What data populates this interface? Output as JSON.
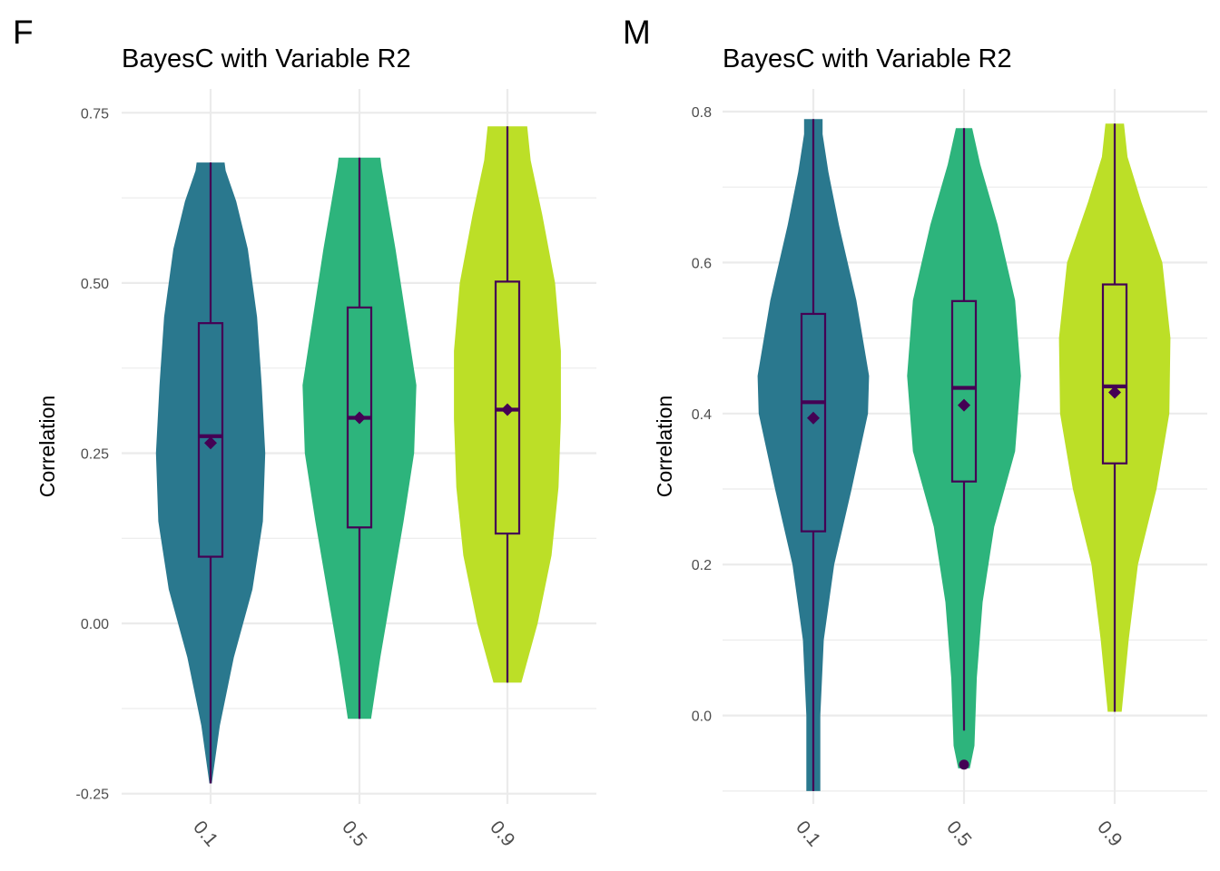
{
  "colors": {
    "violin_0.1": "#2a788e",
    "violin_0.5": "#2db47c",
    "violin_0.9": "#bcdf27",
    "box_stroke": "#440154",
    "mean_marker": "#440154",
    "grid": "#ebebeb",
    "tick_text": "#4d4d4d"
  },
  "chart_data": [
    {
      "panel_tag": "F",
      "type": "violin",
      "title": "BayesC with Variable R2",
      "xlabel": "",
      "ylabel": "Correlation",
      "categories": [
        "0.1",
        "0.5",
        "0.9"
      ],
      "y_ticks": [
        "0.75",
        "0.50",
        "0.25",
        "0.00",
        "-0.25"
      ],
      "ylim": [
        -0.265,
        0.785
      ],
      "grid": true,
      "legend": "none",
      "groups": [
        {
          "category": "0.1",
          "min": -0.235,
          "q1": 0.098,
          "median": 0.275,
          "q3": 0.441,
          "max": 0.677,
          "mean": 0.265,
          "outliers": [],
          "density": [
            [
              -0.235,
              0.01
            ],
            [
              -0.15,
              0.08
            ],
            [
              -0.05,
              0.2
            ],
            [
              0.05,
              0.36
            ],
            [
              0.15,
              0.45
            ],
            [
              0.25,
              0.47
            ],
            [
              0.35,
              0.44
            ],
            [
              0.45,
              0.4
            ],
            [
              0.55,
              0.32
            ],
            [
              0.62,
              0.22
            ],
            [
              0.665,
              0.13
            ],
            [
              0.677,
              0.12
            ]
          ]
        },
        {
          "category": "0.5",
          "min": -0.14,
          "q1": 0.141,
          "median": 0.302,
          "q3": 0.464,
          "max": 0.684,
          "mean": 0.302,
          "outliers": [],
          "density": [
            [
              -0.14,
              0.1
            ],
            [
              -0.05,
              0.18
            ],
            [
              0.05,
              0.28
            ],
            [
              0.15,
              0.38
            ],
            [
              0.25,
              0.47
            ],
            [
              0.35,
              0.49
            ],
            [
              0.45,
              0.4
            ],
            [
              0.55,
              0.31
            ],
            [
              0.63,
              0.23
            ],
            [
              0.67,
              0.19
            ],
            [
              0.684,
              0.18
            ]
          ]
        },
        {
          "category": "0.9",
          "min": -0.087,
          "q1": 0.132,
          "median": 0.314,
          "q3": 0.502,
          "max": 0.73,
          "mean": 0.314,
          "outliers": [],
          "density": [
            [
              -0.087,
              0.12
            ],
            [
              0.0,
              0.26
            ],
            [
              0.1,
              0.38
            ],
            [
              0.2,
              0.44
            ],
            [
              0.3,
              0.46
            ],
            [
              0.4,
              0.46
            ],
            [
              0.5,
              0.41
            ],
            [
              0.6,
              0.3
            ],
            [
              0.68,
              0.2
            ],
            [
              0.73,
              0.17
            ]
          ]
        }
      ]
    },
    {
      "panel_tag": "M",
      "type": "violin",
      "title": "BayesC with Variable R2",
      "xlabel": "",
      "ylabel": "Correlation",
      "categories": [
        "0.1",
        "0.5",
        "0.9"
      ],
      "y_ticks": [
        "0.8",
        "0.6",
        "0.4",
        "0.2",
        "0.0"
      ],
      "ylim": [
        -0.117,
        0.83
      ],
      "grid": true,
      "legend": "none",
      "groups": [
        {
          "category": "0.1",
          "min": -0.1,
          "q1": 0.244,
          "median": 0.415,
          "q3": 0.532,
          "max": 0.79,
          "mean": 0.394,
          "outliers": [],
          "density": [
            [
              -0.1,
              0.06
            ],
            [
              0.0,
              0.06
            ],
            [
              0.1,
              0.09
            ],
            [
              0.2,
              0.18
            ],
            [
              0.3,
              0.33
            ],
            [
              0.4,
              0.47
            ],
            [
              0.45,
              0.48
            ],
            [
              0.55,
              0.37
            ],
            [
              0.65,
              0.22
            ],
            [
              0.72,
              0.13
            ],
            [
              0.77,
              0.08
            ],
            [
              0.79,
              0.08
            ]
          ]
        },
        {
          "category": "0.5",
          "min": -0.02,
          "q1": 0.31,
          "median": 0.434,
          "q3": 0.549,
          "max": 0.778,
          "mean": 0.411,
          "outliers": [
            -0.065
          ],
          "density": [
            [
              -0.07,
              0.05
            ],
            [
              -0.04,
              0.09
            ],
            [
              0.05,
              0.11
            ],
            [
              0.15,
              0.16
            ],
            [
              0.25,
              0.26
            ],
            [
              0.35,
              0.44
            ],
            [
              0.45,
              0.49
            ],
            [
              0.55,
              0.44
            ],
            [
              0.65,
              0.29
            ],
            [
              0.73,
              0.14
            ],
            [
              0.778,
              0.07
            ]
          ]
        },
        {
          "category": "0.9",
          "min": 0.005,
          "q1": 0.334,
          "median": 0.436,
          "q3": 0.571,
          "max": 0.784,
          "mean": 0.428,
          "outliers": [],
          "density": [
            [
              0.005,
              0.06
            ],
            [
              0.1,
              0.12
            ],
            [
              0.2,
              0.2
            ],
            [
              0.3,
              0.36
            ],
            [
              0.4,
              0.47
            ],
            [
              0.5,
              0.48
            ],
            [
              0.6,
              0.41
            ],
            [
              0.68,
              0.23
            ],
            [
              0.74,
              0.11
            ],
            [
              0.784,
              0.08
            ]
          ]
        }
      ]
    }
  ]
}
